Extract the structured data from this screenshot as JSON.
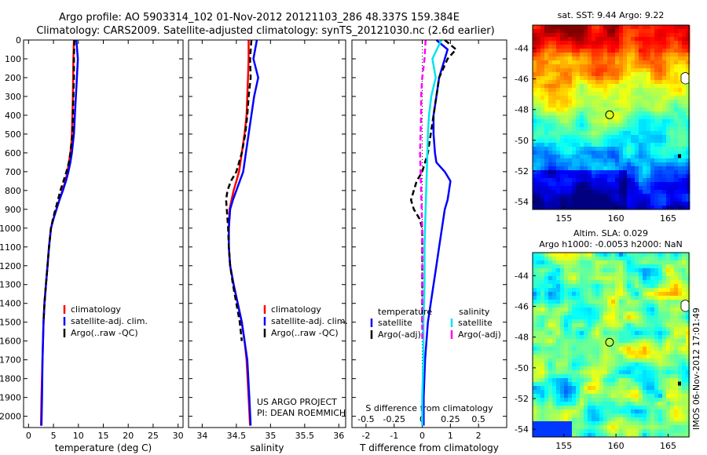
{
  "header": {
    "line1": "Argo profile: AO 5903314_102 01-Nov-2012 20121103_286 48.337S 159.384E",
    "line2": "Climatology: CARS2009. Satellite-adjusted climatology: synTS_20121030.nc (2.6d earlier)"
  },
  "side_text": "IMOS 06-Nov-2012 17:01:49",
  "project_lines": [
    "US ARGO PROJECT",
    "PI: DEAN ROEMMICH"
  ],
  "colors": {
    "climatology": "#ff0000",
    "satellite": "#0000ff",
    "argo": "#000000",
    "sal_satellite": "#00e5ee",
    "sal_argo": "#ff00ff"
  },
  "chart_data": [
    {
      "type": "line",
      "panel": "temperature",
      "xlabel": "temperature (deg C)",
      "ylabel": "",
      "xlim": [
        -1,
        31
      ],
      "ylim": [
        2060,
        0
      ],
      "y_reversed": true,
      "xticks": [
        0,
        5,
        10,
        15,
        20,
        25,
        30
      ],
      "yticks": [
        0,
        100,
        200,
        300,
        400,
        500,
        600,
        700,
        800,
        900,
        1000,
        1100,
        1200,
        1300,
        1400,
        1500,
        1600,
        1700,
        1800,
        1900,
        2000
      ],
      "legend": [
        "climatology",
        "satellite-adj. clim.",
        "Argo(..raw -QC)"
      ],
      "legend_position": "lower-center",
      "series": [
        {
          "name": "climatology",
          "color": "#ff0000",
          "style": "solid",
          "x": [
            9.1,
            9.0,
            8.95,
            8.9,
            8.8,
            8.7,
            8.6,
            8.4,
            8.1,
            7.8,
            7.4,
            6.8,
            6.2,
            5.6,
            5.0,
            4.5,
            4.1,
            3.8,
            3.5,
            3.2,
            3.0,
            2.8,
            2.6,
            2.5
          ],
          "y": [
            0,
            100,
            200,
            300,
            400,
            500,
            550,
            600,
            650,
            700,
            750,
            800,
            850,
            900,
            950,
            1000,
            1100,
            1200,
            1300,
            1400,
            1500,
            1700,
            1900,
            2050
          ]
        },
        {
          "name": "satellite-adj. clim.",
          "color": "#0000ff",
          "style": "solid",
          "x": [
            9.6,
            9.9,
            9.7,
            9.5,
            9.3,
            9.1,
            8.9,
            8.7,
            8.4,
            8.0,
            7.5,
            6.9,
            6.2,
            5.6,
            5.0,
            4.5,
            4.1,
            3.8,
            3.5,
            3.2,
            3.0,
            2.8,
            2.7,
            2.6
          ],
          "y": [
            0,
            100,
            200,
            300,
            400,
            500,
            550,
            600,
            650,
            700,
            750,
            800,
            850,
            900,
            950,
            1000,
            1100,
            1200,
            1300,
            1400,
            1500,
            1700,
            1900,
            2050
          ]
        },
        {
          "name": "Argo(..raw -QC)",
          "color": "#000000",
          "style": "dashed",
          "x": [
            9.2,
            9.1,
            9.1,
            9.0,
            8.9,
            8.8,
            8.6,
            8.4,
            8.1,
            7.6,
            7.0,
            6.4,
            5.9,
            5.4,
            4.9,
            4.5,
            4.1,
            3.8,
            3.5,
            3.2,
            3.0
          ],
          "y": [
            0,
            100,
            200,
            300,
            400,
            500,
            550,
            600,
            650,
            700,
            750,
            800,
            850,
            900,
            950,
            1000,
            1100,
            1200,
            1300,
            1400,
            1500
          ]
        }
      ]
    },
    {
      "type": "line",
      "panel": "salinity",
      "xlabel": "salinity",
      "xlim": [
        33.8,
        36.1
      ],
      "ylim": [
        2060,
        0
      ],
      "y_reversed": true,
      "xticks": [
        34,
        34.5,
        35,
        35.5,
        36
      ],
      "legend": [
        "climatology",
        "satellite-adj. clim.",
        "Argo(..raw -QC)"
      ],
      "legend_position": "lower-right",
      "series": [
        {
          "name": "climatology",
          "color": "#ff0000",
          "style": "solid",
          "x": [
            34.68,
            34.68,
            34.67,
            34.66,
            34.65,
            34.62,
            34.58,
            34.54,
            34.5,
            34.46,
            34.43,
            34.4,
            34.39,
            34.39,
            34.41,
            34.46,
            34.52,
            34.58,
            34.62,
            34.65,
            34.68,
            34.7
          ],
          "y": [
            0,
            100,
            200,
            300,
            400,
            500,
            600,
            700,
            750,
            800,
            850,
            900,
            1000,
            1100,
            1200,
            1300,
            1400,
            1500,
            1600,
            1700,
            1900,
            2050
          ]
        },
        {
          "name": "satellite-adj. clim.",
          "color": "#0000ff",
          "style": "solid",
          "x": [
            34.8,
            34.75,
            34.82,
            34.76,
            34.72,
            34.68,
            34.64,
            34.6,
            34.55,
            34.5,
            34.45,
            34.41,
            34.39,
            34.39,
            34.41,
            34.46,
            34.52,
            34.58,
            34.62,
            34.66,
            34.69,
            34.71
          ],
          "y": [
            0,
            100,
            200,
            300,
            400,
            500,
            600,
            700,
            750,
            800,
            850,
            900,
            1000,
            1100,
            1200,
            1300,
            1400,
            1500,
            1600,
            1700,
            1900,
            2050
          ]
        },
        {
          "name": "Argo(..raw -QC)",
          "color": "#000000",
          "style": "dashed",
          "x": [
            34.72,
            34.7,
            34.71,
            34.68,
            34.66,
            34.63,
            34.58,
            34.5,
            34.42,
            34.37,
            34.35,
            34.36,
            34.38,
            34.39,
            34.41,
            34.45,
            34.5,
            34.55,
            34.58
          ],
          "y": [
            0,
            100,
            200,
            300,
            400,
            500,
            600,
            700,
            750,
            800,
            850,
            900,
            1000,
            1100,
            1200,
            1300,
            1400,
            1500,
            1600
          ]
        }
      ]
    },
    {
      "type": "line",
      "panel": "difference",
      "xlabel": "T difference from climatology",
      "xlabel_top": "S difference from climatology",
      "xlim": [
        -2.5,
        3.0
      ],
      "xlim_s": [
        -0.625,
        0.75
      ],
      "ylim": [
        2060,
        0
      ],
      "y_reversed": true,
      "xticks": [
        -2,
        -1,
        0,
        1,
        2
      ],
      "xtick_labels": [
        "-2",
        "-1",
        "0",
        "1",
        "2"
      ],
      "xticks_s": [
        -0.5,
        -0.25,
        0,
        0.25,
        0.5
      ],
      "xtick_labels_s": [
        "-0.5",
        "-0.25",
        "0",
        "0.25",
        "0.5"
      ],
      "legend_headers": [
        "temperature",
        "salinity"
      ],
      "legend": [
        "satellite",
        "Argo(-adj)",
        "satellite",
        "Argo(-adj)"
      ],
      "legend_position": "lower-center",
      "series": [
        {
          "name": "temperature satellite",
          "color": "#0000ff",
          "style": "solid",
          "x": [
            0.5,
            0.9,
            0.8,
            0.6,
            0.5,
            0.4,
            0.4,
            0.45,
            0.5,
            0.8,
            1.0,
            0.95,
            0.9,
            0.8,
            0.7,
            0.6,
            0.5,
            0.4,
            0.3,
            0.2,
            0.15,
            0.1,
            0.05,
            0.05
          ],
          "y": [
            0,
            50,
            100,
            200,
            300,
            400,
            500,
            600,
            650,
            700,
            750,
            800,
            850,
            900,
            1000,
            1100,
            1200,
            1300,
            1400,
            1500,
            1600,
            1700,
            1900,
            2050
          ]
        },
        {
          "name": "temperature Argo(-adj)",
          "color": "#000000",
          "style": "dashed",
          "x": [
            0.8,
            1.2,
            0.9,
            0.6,
            0.5,
            0.4,
            0.3,
            0.2,
            0.0,
            -0.2,
            -0.4,
            -0.3,
            -0.1,
            0.0,
            0.0,
            0.0,
            0.0
          ],
          "y": [
            0,
            50,
            100,
            200,
            300,
            400,
            500,
            600,
            700,
            750,
            850,
            900,
            950,
            1000,
            1100,
            1300,
            1500
          ]
        },
        {
          "name": "salinity satellite",
          "color": "#00e5ee",
          "style": "solid",
          "x": [
            0.17,
            0.09,
            0.12,
            0.08,
            0.06,
            0.05,
            0.04,
            0.03,
            0.02,
            0.02,
            0.01,
            0.01,
            0.0,
            0.0
          ],
          "y": [
            0,
            100,
            200,
            300,
            400,
            500,
            700,
            900,
            1100,
            1300,
            1500,
            1700,
            1900,
            2050
          ]
        },
        {
          "name": "salinity Argo(-adj)",
          "color": "#ff00ff",
          "style": "dashed",
          "x": [
            0.03,
            0.02,
            0.0,
            -0.01,
            -0.01,
            -0.02,
            -0.01,
            0.0,
            0.0,
            0.0,
            0.0
          ],
          "y": [
            0,
            100,
            200,
            300,
            400,
            600,
            800,
            1000,
            1200,
            1400,
            1600
          ]
        }
      ]
    },
    {
      "type": "heatmap",
      "panel": "sst_map",
      "title": "sat. SST: 9.44 Argo: 9.22",
      "xlim": [
        152,
        167
      ],
      "ylim": [
        -54.5,
        -42.5
      ],
      "xticks": [
        155,
        160,
        165
      ],
      "yticks": [
        -44,
        -46,
        -48,
        -50,
        -52,
        -54
      ],
      "marker": {
        "lon": 159.384,
        "lat": -48.337
      }
    },
    {
      "type": "heatmap",
      "panel": "sla_map",
      "title": "Altim. SLA: 0.029",
      "subtitle": "Argo h1000: -0.0053 h2000: NaN",
      "xlim": [
        152,
        167
      ],
      "ylim": [
        -54.5,
        -42.5
      ],
      "xticks": [
        155,
        160,
        165
      ],
      "yticks": [
        -44,
        -46,
        -48,
        -50,
        -52,
        -54
      ],
      "marker": {
        "lon": 159.384,
        "lat": -48.337
      }
    }
  ]
}
